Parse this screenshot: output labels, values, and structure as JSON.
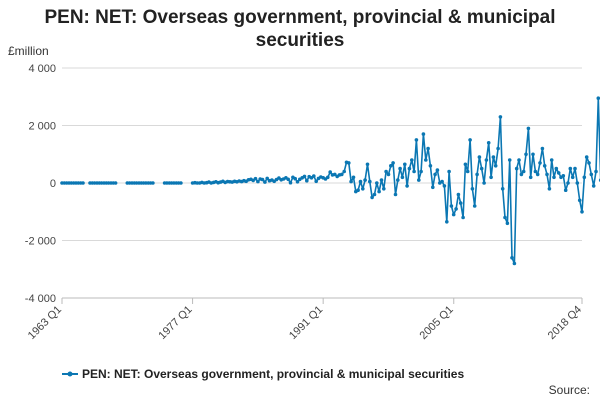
{
  "colors": {
    "series": "#0b77b3",
    "grid": "#d9d9d9",
    "axis": "#bbbbbb"
  },
  "chart_data": {
    "type": "line",
    "title": "PEN: NET: Overseas government, provincial & municipal securities",
    "ylabel": "£million",
    "xlabel": "",
    "source": "Source:",
    "grid": true,
    "legend": "bottom",
    "markers": true,
    "frequency": "quarterly",
    "x_start": "1963 Q1",
    "x_end": "2018 Q4",
    "ylim": [
      -4000,
      4000
    ],
    "ytick_values": [
      -4000,
      -2000,
      0,
      2000,
      4000
    ],
    "ytick_labels": [
      "-4 000",
      "-2 000",
      "0",
      "2 000",
      "4 000"
    ],
    "xtick_labels": [
      "1963 Q1",
      "1977 Q1",
      "1991 Q1",
      "2005 Q1",
      "2018 Q4"
    ],
    "series": [
      {
        "name": "PEN: NET: Overseas government, provincial & municipal securities",
        "segments": [
          {
            "start": "1963 Q1",
            "values": [
              0,
              0,
              0,
              0,
              0,
              0,
              0,
              0,
              0,
              0
            ]
          },
          {
            "start": "1966 Q1",
            "values": [
              0,
              0,
              0,
              0,
              0,
              0,
              0,
              0,
              0,
              0,
              0,
              0
            ]
          },
          {
            "start": "1970 Q1",
            "values": [
              0,
              0,
              0,
              0,
              0,
              0,
              0,
              0,
              0,
              0,
              0,
              0
            ]
          },
          {
            "start": "1974 Q1",
            "values": [
              0,
              0,
              0,
              0,
              0,
              0,
              0,
              0
            ]
          },
          {
            "start": "1977 Q1",
            "values": [
              0,
              10,
              0,
              0,
              20,
              0,
              10,
              30,
              0,
              20,
              40,
              10,
              30,
              60,
              20,
              50,
              40,
              30,
              60,
              40,
              70,
              50,
              80,
              60,
              110,
              130,
              90,
              150,
              50,
              140,
              120,
              30,
              160,
              80,
              100,
              60,
              120,
              170,
              110,
              140,
              180,
              130,
              10,
              200,
              150,
              40,
              130,
              180,
              230,
              80,
              220,
              180,
              240,
              60,
              160,
              210,
              180,
              140
            ]
          },
          {
            "start": "1991 Q3",
            "values": [
              200,
              380,
              280,
              300,
              230,
              280,
              300,
              400,
              720,
              700,
              50,
              200,
              -300,
              -250,
              50,
              -200,
              100,
              650,
              50,
              -500,
              -400,
              0,
              -300,
              100,
              -200,
              400,
              300,
              600,
              700,
              -400,
              100,
              500,
              200,
              650,
              -100,
              500,
              800,
              400,
              1500,
              100,
              400,
              1700,
              800,
              1200,
              600,
              -150,
              300,
              450,
              0,
              50,
              -100,
              -1350,
              400,
              -800,
              -1100,
              -900,
              -400,
              -700,
              -1200,
              650,
              400,
              1500,
              -200,
              -800,
              300,
              900,
              500,
              0,
              800,
              1400,
              200,
              900,
              600,
              1200,
              2300,
              -200,
              -1200,
              -1400,
              800,
              -2600,
              -2800,
              500,
              800,
              300,
              400,
              1000,
              1900,
              200,
              1000,
              400,
              300,
              700,
              1200,
              600,
              300,
              -200,
              800,
              200,
              500,
              350,
              200,
              250,
              -250,
              0,
              500,
              200,
              500,
              0,
              -600,
              -1000,
              200,
              900,
              700,
              300,
              -100,
              400,
              2950,
              100,
              600,
              2050
            ]
          }
        ]
      }
    ]
  }
}
